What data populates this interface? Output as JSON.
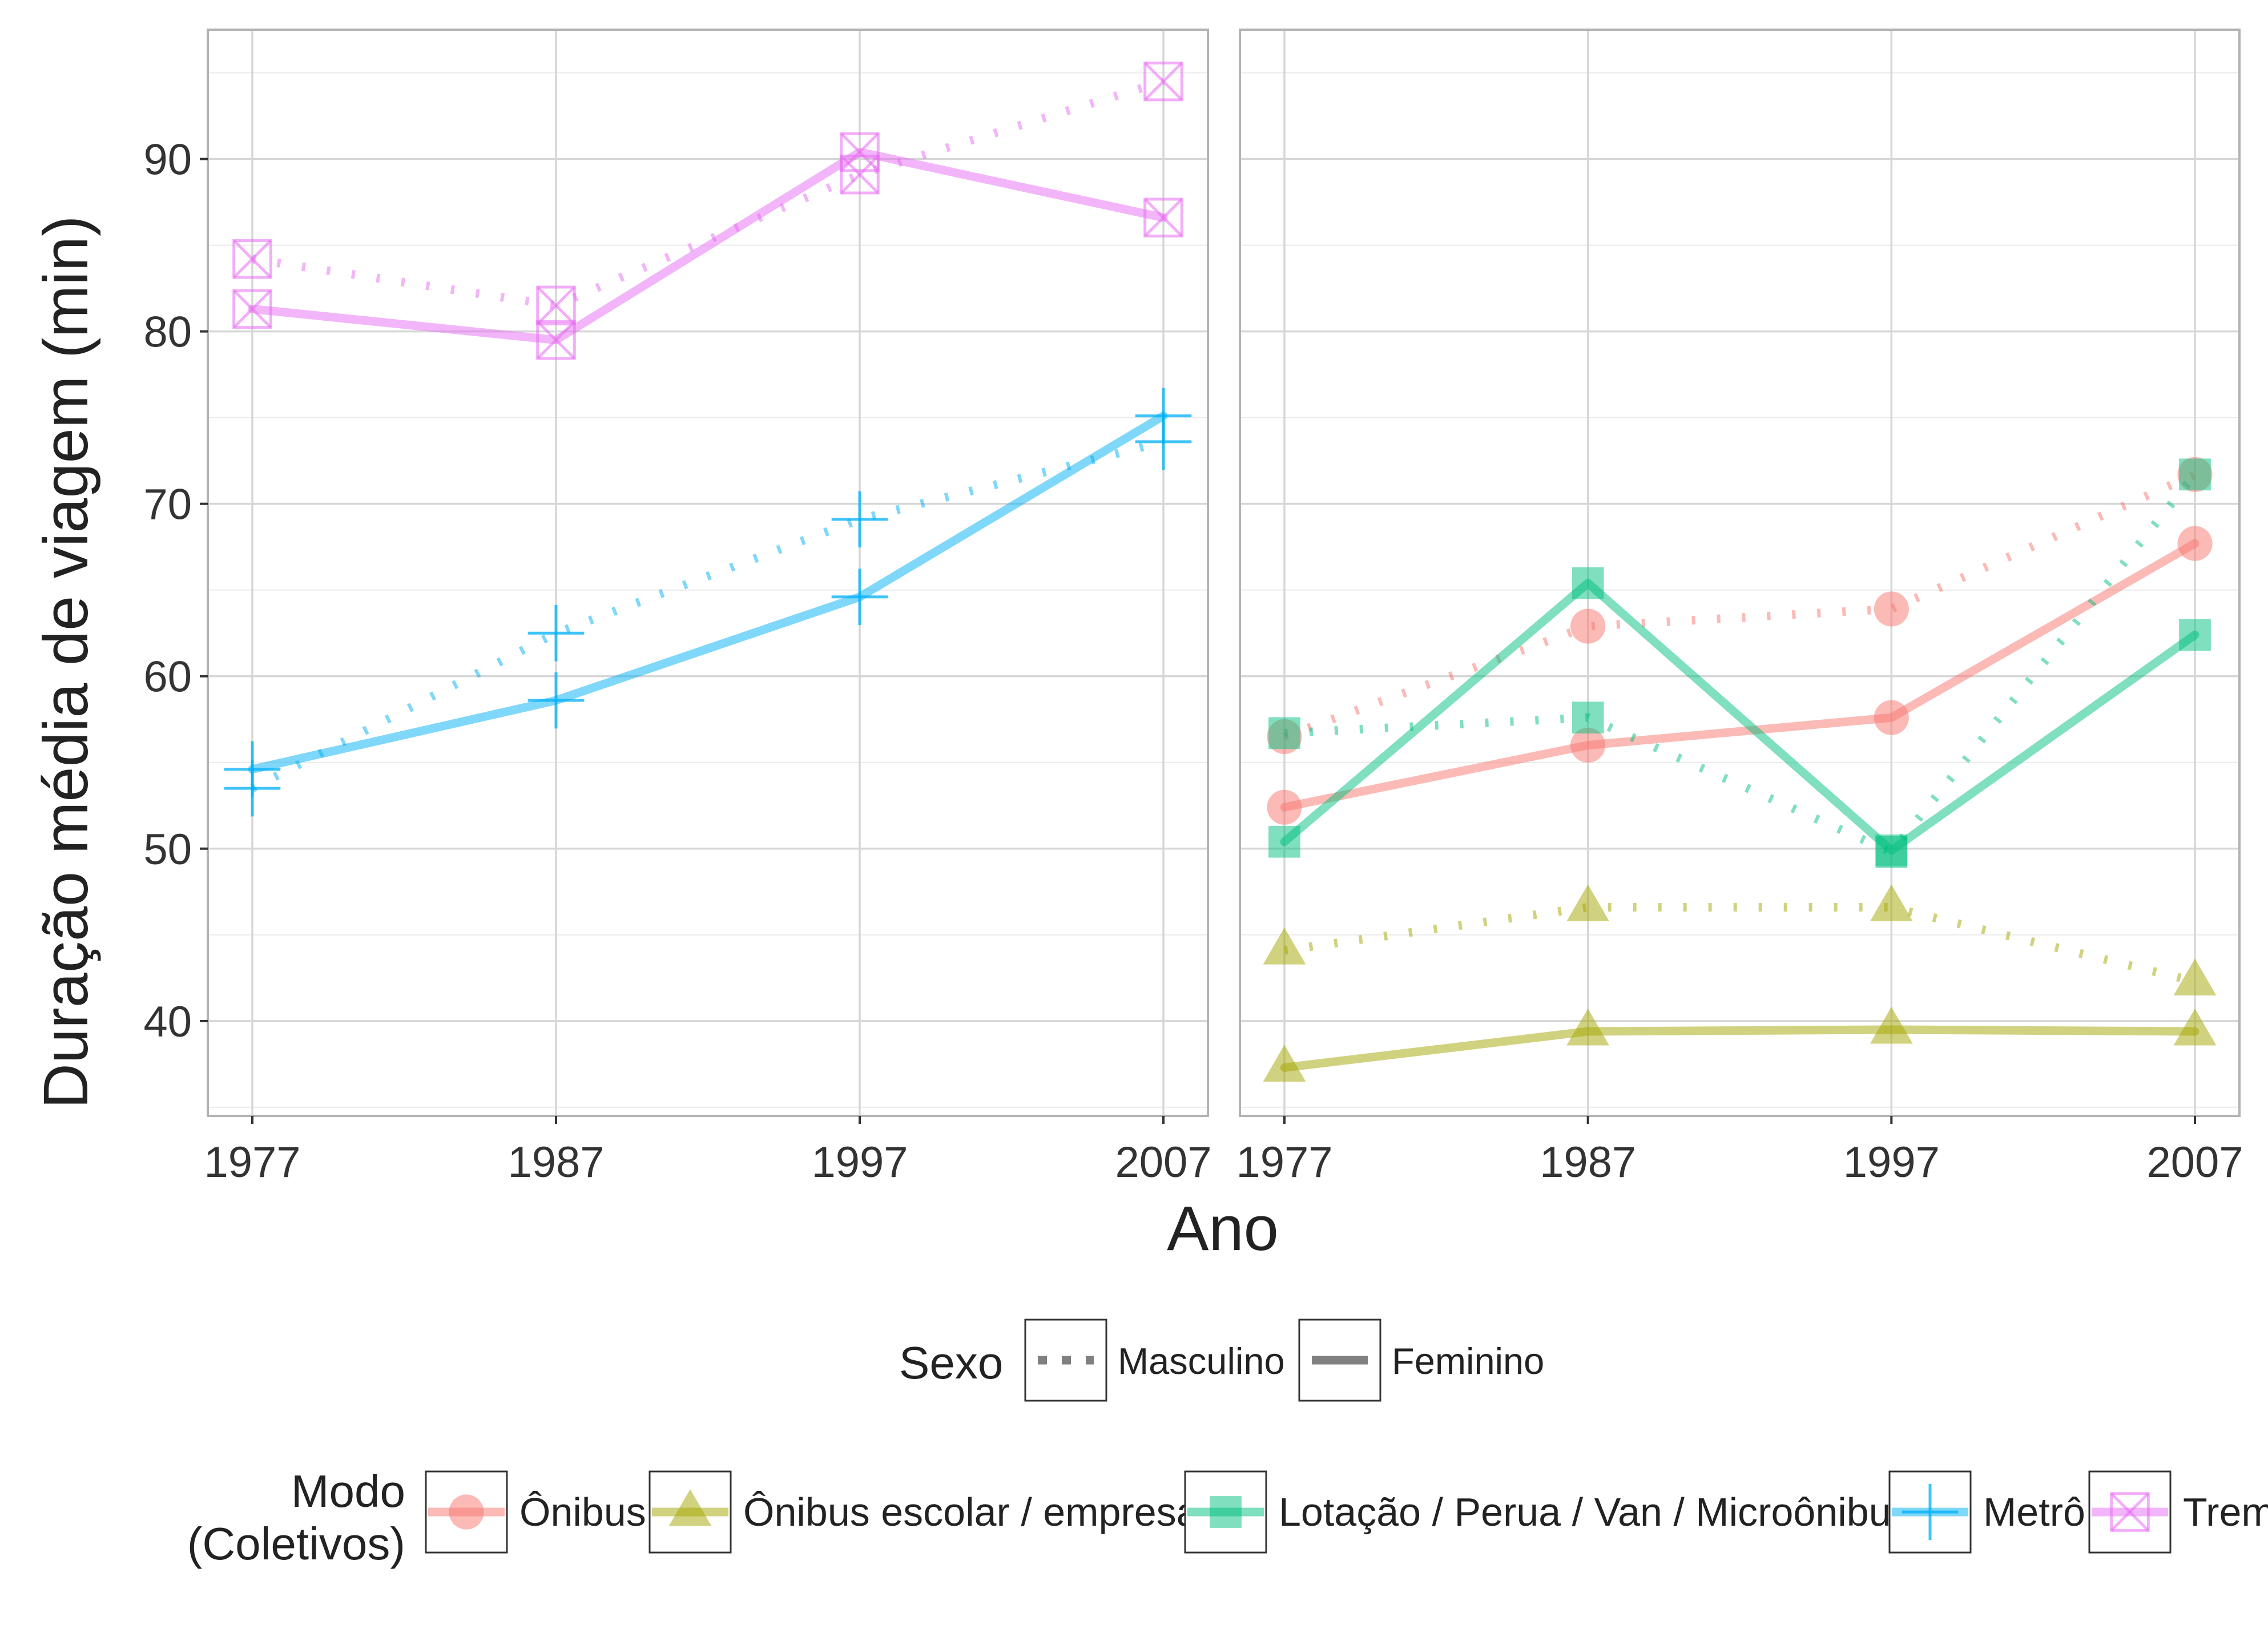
{
  "chart_data": {
    "type": "line",
    "xlabel": "Ano",
    "ylabel": "Duração média de viagem (min)",
    "x_ticks": [
      "1977",
      "1987",
      "1997",
      "2007"
    ],
    "y_ticks": [
      "40",
      "50",
      "60",
      "70",
      "80",
      "90"
    ],
    "ylim": [
      34.5,
      97.5
    ],
    "x_values": [
      1977,
      1987,
      1997,
      2007
    ],
    "grid": true,
    "legend_position": "bottom",
    "legend_sexo": {
      "title": "Sexo",
      "items": [
        {
          "key": "masc",
          "label": "Masculino",
          "linetype": "dotted"
        },
        {
          "key": "fem",
          "label": "Feminino",
          "linetype": "solid"
        }
      ]
    },
    "legend_modo": {
      "title_line1": "Modo",
      "title_line2": "(Coletivos)",
      "items": [
        {
          "key": "onibus",
          "label": "Ônibus",
          "color": "#F8766D",
          "shape": "circle"
        },
        {
          "key": "escolar",
          "label": "Ônibus escolar / empresa",
          "color": "#A3A500",
          "shape": "triangle"
        },
        {
          "key": "lotacao",
          "label": "Lotação / Perua / Van / Microônibus",
          "color": "#00BF7D",
          "shape": "square"
        },
        {
          "key": "metro",
          "label": "Metrô",
          "color": "#00B0F6",
          "shape": "plus"
        },
        {
          "key": "trem",
          "label": "Trem",
          "color": "#E76BF3",
          "shape": "boxcross"
        }
      ]
    },
    "panels": [
      {
        "series": [
          {
            "mode": "metro",
            "sexo": "masc",
            "values": [
              53.5,
              62.5,
              69.1,
              73.6
            ]
          },
          {
            "mode": "metro",
            "sexo": "fem",
            "values": [
              54.6,
              58.6,
              64.6,
              75.1
            ]
          },
          {
            "mode": "trem",
            "sexo": "masc",
            "values": [
              84.2,
              81.5,
              89.1,
              94.5
            ]
          },
          {
            "mode": "trem",
            "sexo": "fem",
            "values": [
              81.3,
              79.5,
              90.4,
              86.6
            ]
          }
        ]
      },
      {
        "series": [
          {
            "mode": "onibus",
            "sexo": "masc",
            "values": [
              56.5,
              62.9,
              63.9,
              71.7
            ]
          },
          {
            "mode": "onibus",
            "sexo": "fem",
            "values": [
              52.4,
              56.0,
              57.6,
              67.7
            ]
          },
          {
            "mode": "escolar",
            "sexo": "masc",
            "values": [
              44.1,
              46.6,
              46.6,
              42.3
            ]
          },
          {
            "mode": "escolar",
            "sexo": "fem",
            "values": [
              37.3,
              39.4,
              39.5,
              39.4
            ]
          },
          {
            "mode": "lotacao",
            "sexo": "masc",
            "values": [
              56.7,
              57.6,
              49.8,
              71.7
            ]
          },
          {
            "mode": "lotacao",
            "sexo": "fem",
            "values": [
              50.4,
              65.4,
              49.9,
              62.4
            ]
          }
        ]
      }
    ]
  }
}
